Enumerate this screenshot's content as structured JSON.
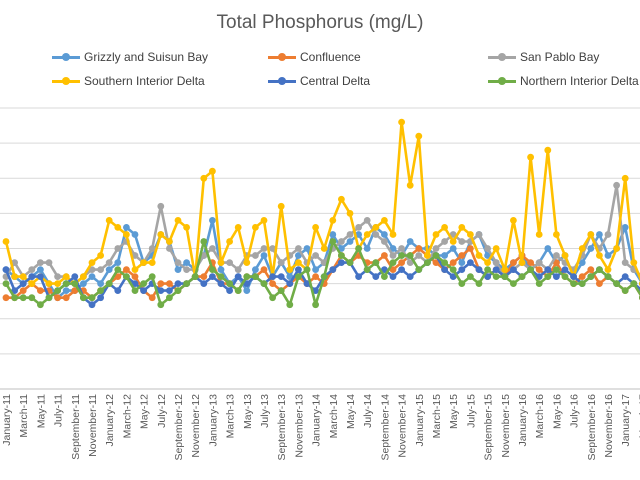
{
  "chart_data": {
    "type": "line",
    "title": "Total Phosphorus (mg/L)",
    "xlabel": "",
    "ylabel": "",
    "ylim": [
      0,
      0.4
    ],
    "grid": true,
    "legend_position": "top",
    "x": [
      "January-11",
      "February-11",
      "March-11",
      "April-11",
      "May-11",
      "June-11",
      "July-11",
      "August-11",
      "September-11",
      "October-11",
      "November-11",
      "December-11",
      "January-12",
      "February-12",
      "March-12",
      "April-12",
      "May-12",
      "June-12",
      "July-12",
      "August-12",
      "September-12",
      "October-12",
      "November-12",
      "December-12",
      "January-13",
      "February-13",
      "March-13",
      "April-13",
      "May-13",
      "June-13",
      "July-13",
      "August-13",
      "September-13",
      "October-13",
      "November-13",
      "December-13",
      "January-14",
      "February-14",
      "March-14",
      "April-14",
      "May-14",
      "June-14",
      "July-14",
      "August-14",
      "September-14",
      "October-14",
      "November-14",
      "December-14",
      "January-15",
      "February-15",
      "March-15",
      "April-15",
      "May-15",
      "June-15",
      "July-15",
      "August-15",
      "September-15",
      "October-15",
      "November-15",
      "December-15",
      "January-16",
      "February-16",
      "March-16",
      "April-16",
      "May-16",
      "June-16",
      "July-16",
      "August-16",
      "September-16",
      "October-16",
      "November-16",
      "December-16",
      "January-17",
      "February-17",
      "March-17",
      "April-17",
      "May-17",
      "June-17",
      "July-17"
    ],
    "x_tick_labels": [
      "January-11",
      "March-11",
      "May-11",
      "July-11",
      "September-11",
      "November-11",
      "January-12",
      "March-12",
      "May-12",
      "July-12",
      "September-12",
      "November-12",
      "January-13",
      "March-13",
      "May-13",
      "July-13",
      "September-13",
      "November-13",
      "January-14",
      "March-14",
      "May-14",
      "July-14",
      "September-14",
      "November-14",
      "January-15",
      "March-15",
      "May-15",
      "July-15",
      "September-15",
      "November-15",
      "January-16",
      "March-16",
      "May-16",
      "July-16",
      "September-16",
      "November-16",
      "January-17",
      "March-17",
      "May-17",
      "July-17"
    ],
    "series": [
      {
        "name": "Grizzly and Suisun Bay",
        "color": "#5B9BD5",
        "values": [
          0.17,
          0.16,
          0.15,
          0.16,
          0.17,
          0.15,
          0.13,
          0.14,
          0.14,
          0.15,
          0.16,
          0.15,
          0.17,
          0.18,
          0.23,
          0.22,
          0.18,
          0.19,
          0.22,
          0.21,
          0.17,
          0.18,
          0.17,
          0.19,
          0.24,
          0.17,
          0.15,
          0.16,
          0.14,
          0.17,
          0.19,
          0.16,
          0.18,
          0.16,
          0.19,
          0.2,
          0.17,
          0.18,
          0.22,
          0.2,
          0.21,
          0.22,
          0.2,
          0.23,
          0.22,
          0.2,
          0.19,
          0.21,
          0.2,
          0.2,
          0.19,
          0.19,
          0.2,
          0.18,
          0.21,
          0.22,
          0.19,
          0.18,
          0.17,
          0.18,
          0.19,
          0.17,
          0.18,
          0.2,
          0.18,
          0.19,
          0.16,
          0.18,
          0.2,
          0.22,
          0.19,
          0.2,
          0.23,
          0.17,
          0.15,
          0.16,
          0.14,
          0.19,
          0.16
        ]
      },
      {
        "name": "Confluence",
        "color": "#ED7D31",
        "values": [
          0.13,
          0.13,
          0.14,
          0.15,
          0.14,
          0.14,
          0.13,
          0.13,
          0.14,
          0.14,
          0.13,
          0.14,
          0.15,
          0.16,
          0.17,
          0.16,
          0.14,
          0.13,
          0.15,
          0.15,
          0.14,
          0.15,
          0.16,
          0.16,
          0.18,
          0.15,
          0.15,
          0.14,
          0.16,
          0.16,
          0.17,
          0.15,
          0.14,
          0.15,
          0.16,
          0.15,
          0.16,
          0.15,
          0.17,
          0.19,
          0.18,
          0.19,
          0.18,
          0.18,
          0.19,
          0.17,
          0.18,
          0.19,
          0.2,
          0.19,
          0.18,
          0.17,
          0.18,
          0.19,
          0.2,
          0.17,
          0.16,
          0.17,
          0.16,
          0.18,
          0.19,
          0.18,
          0.17,
          0.16,
          0.18,
          0.16,
          0.15,
          0.16,
          0.17,
          0.15,
          0.16,
          0.15,
          0.14,
          0.15,
          0.13,
          0.12,
          0.13,
          0.13,
          0.12
        ]
      },
      {
        "name": "San Pablo Bay",
        "color": "#A5A5A5",
        "values": [
          0.16,
          0.18,
          0.16,
          0.17,
          0.18,
          0.18,
          0.16,
          0.16,
          0.15,
          0.16,
          0.17,
          0.17,
          0.18,
          0.2,
          0.21,
          0.19,
          0.18,
          0.2,
          0.26,
          0.2,
          0.18,
          0.17,
          0.17,
          0.19,
          0.2,
          0.18,
          0.18,
          0.17,
          0.19,
          0.19,
          0.2,
          0.2,
          0.18,
          0.19,
          0.2,
          0.18,
          0.19,
          0.18,
          0.2,
          0.21,
          0.22,
          0.23,
          0.24,
          0.22,
          0.21,
          0.19,
          0.2,
          0.18,
          0.19,
          0.18,
          0.2,
          0.21,
          0.22,
          0.21,
          0.21,
          0.22,
          0.2,
          0.18,
          0.16,
          0.17,
          0.18,
          0.17,
          0.18,
          0.17,
          0.19,
          0.18,
          0.17,
          0.19,
          0.22,
          0.2,
          0.22,
          0.29,
          0.18,
          0.17,
          0.16,
          0.17,
          0.17,
          0.18,
          0.2
        ]
      },
      {
        "name": "Southern Interior Delta",
        "color": "#FFC000",
        "values": [
          0.21,
          0.16,
          0.16,
          0.15,
          0.16,
          0.15,
          0.15,
          0.16,
          0.15,
          0.16,
          0.18,
          0.19,
          0.24,
          0.23,
          0.22,
          0.17,
          0.18,
          0.18,
          0.22,
          0.21,
          0.24,
          0.23,
          0.16,
          0.3,
          0.31,
          0.18,
          0.21,
          0.23,
          0.18,
          0.23,
          0.24,
          0.16,
          0.26,
          0.17,
          0.18,
          0.17,
          0.23,
          0.2,
          0.24,
          0.27,
          0.25,
          0.2,
          0.22,
          0.23,
          0.24,
          0.22,
          0.38,
          0.29,
          0.36,
          0.19,
          0.22,
          0.23,
          0.21,
          0.23,
          0.22,
          0.19,
          0.18,
          0.2,
          0.17,
          0.24,
          0.18,
          0.33,
          0.22,
          0.34,
          0.22,
          0.19,
          0.16,
          0.2,
          0.22,
          0.19,
          0.17,
          0.2,
          0.3,
          0.18,
          0.15,
          0.16,
          0.14,
          0.13,
          0.15
        ]
      },
      {
        "name": "Central Delta",
        "color": "#4472C4",
        "values": [
          0.17,
          0.14,
          0.15,
          0.16,
          0.16,
          0.13,
          0.14,
          0.15,
          0.16,
          0.13,
          0.12,
          0.13,
          0.15,
          0.14,
          0.16,
          0.15,
          0.14,
          0.15,
          0.14,
          0.14,
          0.15,
          0.15,
          0.16,
          0.15,
          0.16,
          0.15,
          0.14,
          0.16,
          0.15,
          0.16,
          0.15,
          0.16,
          0.16,
          0.15,
          0.17,
          0.15,
          0.14,
          0.16,
          0.17,
          0.18,
          0.18,
          0.16,
          0.17,
          0.16,
          0.17,
          0.16,
          0.17,
          0.16,
          0.17,
          0.18,
          0.19,
          0.17,
          0.16,
          0.17,
          0.18,
          0.17,
          0.16,
          0.17,
          0.16,
          0.17,
          0.16,
          0.17,
          0.16,
          0.17,
          0.16,
          0.17,
          0.16,
          0.15,
          0.16,
          0.17,
          0.16,
          0.15,
          0.16,
          0.15,
          0.14,
          0.15,
          0.15,
          0.14,
          0.15
        ]
      },
      {
        "name": "Northern Interior Delta",
        "color": "#70AD47",
        "values": [
          0.15,
          0.13,
          0.13,
          0.13,
          0.12,
          0.13,
          0.14,
          0.15,
          0.15,
          0.13,
          0.13,
          0.14,
          0.15,
          0.17,
          0.16,
          0.14,
          0.15,
          0.16,
          0.12,
          0.13,
          0.14,
          0.15,
          0.16,
          0.21,
          0.17,
          0.16,
          0.15,
          0.14,
          0.16,
          0.16,
          0.15,
          0.13,
          0.14,
          0.12,
          0.16,
          0.17,
          0.12,
          0.16,
          0.21,
          0.19,
          0.18,
          0.2,
          0.17,
          0.18,
          0.16,
          0.18,
          0.19,
          0.19,
          0.17,
          0.18,
          0.19,
          0.18,
          0.17,
          0.15,
          0.16,
          0.15,
          0.17,
          0.16,
          0.16,
          0.15,
          0.16,
          0.17,
          0.15,
          0.16,
          0.17,
          0.16,
          0.15,
          0.15,
          0.16,
          0.17,
          0.16,
          0.15,
          0.14,
          0.15,
          0.13,
          0.14,
          0.12,
          0.14,
          0.16
        ]
      }
    ]
  }
}
